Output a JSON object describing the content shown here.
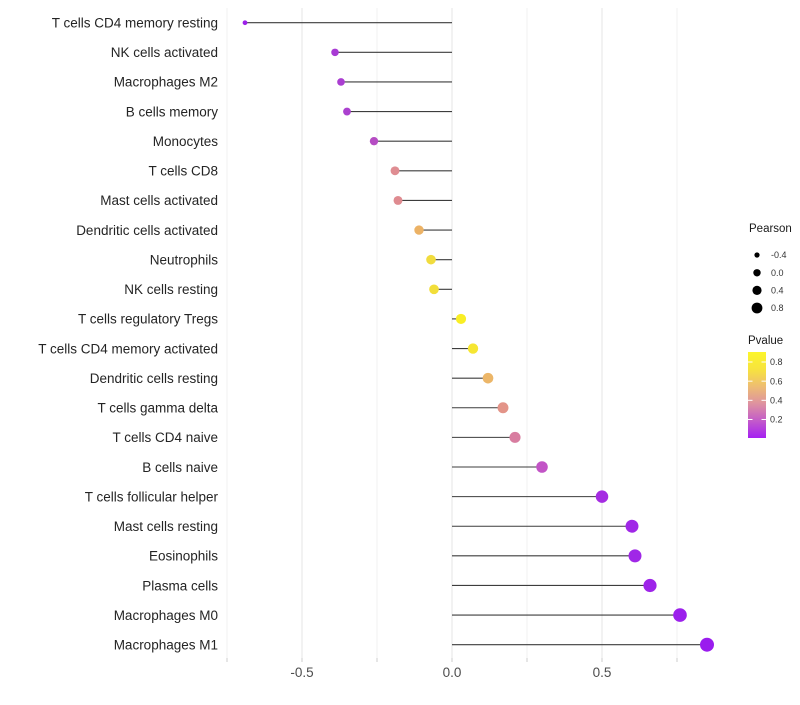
{
  "chart_data": {
    "type": "scatter",
    "variant": "lollipop",
    "title": "",
    "xlabel": "",
    "ylabel": "",
    "x_tick_labels": [
      "-0.5",
      "0.0",
      "0.5"
    ],
    "x_tick_values": [
      -0.5,
      0.0,
      0.5
    ],
    "x_minor_values": [
      -0.75,
      -0.25,
      0.25,
      0.75
    ],
    "xlim": [
      -0.77,
      0.95
    ],
    "grid": "vertical-only",
    "legend_position": "right",
    "points": [
      {
        "label": "T cells CD4 memory resting",
        "pearson": -0.69,
        "pvalue_approx": 0.07,
        "color": "#9c20e9"
      },
      {
        "label": "NK cells activated",
        "pearson": -0.39,
        "pvalue_approx": 0.18,
        "color": "#a83ad4"
      },
      {
        "label": "Macrophages M2",
        "pearson": -0.37,
        "pvalue_approx": 0.19,
        "color": "#aa3ed1"
      },
      {
        "label": "B cells memory",
        "pearson": -0.35,
        "pvalue_approx": 0.2,
        "color": "#ab41cf"
      },
      {
        "label": "Monocytes",
        "pearson": -0.26,
        "pvalue_approx": 0.27,
        "color": "#b54cc3"
      },
      {
        "label": "T cells CD8",
        "pearson": -0.19,
        "pvalue_approx": 0.43,
        "color": "#df8d92"
      },
      {
        "label": "Mast cells activated",
        "pearson": -0.18,
        "pvalue_approx": 0.44,
        "color": "#df8b90"
      },
      {
        "label": "Dendritic cells activated",
        "pearson": -0.11,
        "pvalue_approx": 0.62,
        "color": "#ecb265"
      },
      {
        "label": "Neutrophils",
        "pearson": -0.07,
        "pvalue_approx": 0.75,
        "color": "#f1dc3e"
      },
      {
        "label": "NK cells resting",
        "pearson": -0.06,
        "pvalue_approx": 0.76,
        "color": "#f2de3a"
      },
      {
        "label": "T cells regulatory  Tregs",
        "pearson": 0.03,
        "pvalue_approx": 0.88,
        "color": "#f9ee25"
      },
      {
        "label": "T cells CD4 memory activated",
        "pearson": 0.07,
        "pvalue_approx": 0.82,
        "color": "#f6e632"
      },
      {
        "label": "Dendritic cells resting",
        "pearson": 0.12,
        "pvalue_approx": 0.63,
        "color": "#ecb668"
      },
      {
        "label": "T cells gamma delta",
        "pearson": 0.17,
        "pvalue_approx": 0.47,
        "color": "#e39488"
      },
      {
        "label": "T cells CD4 naive",
        "pearson": 0.21,
        "pvalue_approx": 0.38,
        "color": "#d87da0"
      },
      {
        "label": "B cells naive",
        "pearson": 0.3,
        "pvalue_approx": 0.22,
        "color": "#c254c6"
      },
      {
        "label": "T cells follicular helper",
        "pearson": 0.5,
        "pvalue_approx": 0.12,
        "color": "#a52ce2"
      },
      {
        "label": "Mast cells resting",
        "pearson": 0.6,
        "pvalue_approx": 0.1,
        "color": "#a027e7"
      },
      {
        "label": "Eosinophils",
        "pearson": 0.61,
        "pvalue_approx": 0.1,
        "color": "#a027e7"
      },
      {
        "label": "Plasma cells",
        "pearson": 0.66,
        "pvalue_approx": 0.09,
        "color": "#9e24e9"
      },
      {
        "label": "Macrophages M0",
        "pearson": 0.76,
        "pvalue_approx": 0.07,
        "color": "#9c20ec"
      },
      {
        "label": "Macrophages M1",
        "pearson": 0.85,
        "pvalue_approx": 0.05,
        "color": "#9a1cee"
      }
    ],
    "size_legend": {
      "title": "Pearson",
      "labels": [
        "-0.4",
        "0.0",
        "0.4",
        "0.8"
      ],
      "values": [
        -0.4,
        0.0,
        0.4,
        0.8
      ]
    },
    "color_legend": {
      "title": "Pvalue",
      "tick_labels": [
        "0.8",
        "0.6",
        "0.4",
        "0.2"
      ],
      "tick_values": [
        0.8,
        0.6,
        0.4,
        0.2
      ],
      "range": [
        0.0,
        0.9
      ],
      "gradient_top_to_bottom": [
        "#fcf62b",
        "#f7e33e",
        "#eebd72",
        "#de92a0",
        "#c35bca",
        "#a520f2"
      ]
    },
    "colors": {
      "stem": "#3d3d3d",
      "grid_major": "#e4e4e4",
      "grid_minor": "#f1f1f1",
      "tick_mark": "#cccccc",
      "axis_text": "#4d4d4d",
      "y_label_text": "#242424",
      "legend_text": "#333333",
      "legend_title_text": "#1a1a1a"
    }
  }
}
